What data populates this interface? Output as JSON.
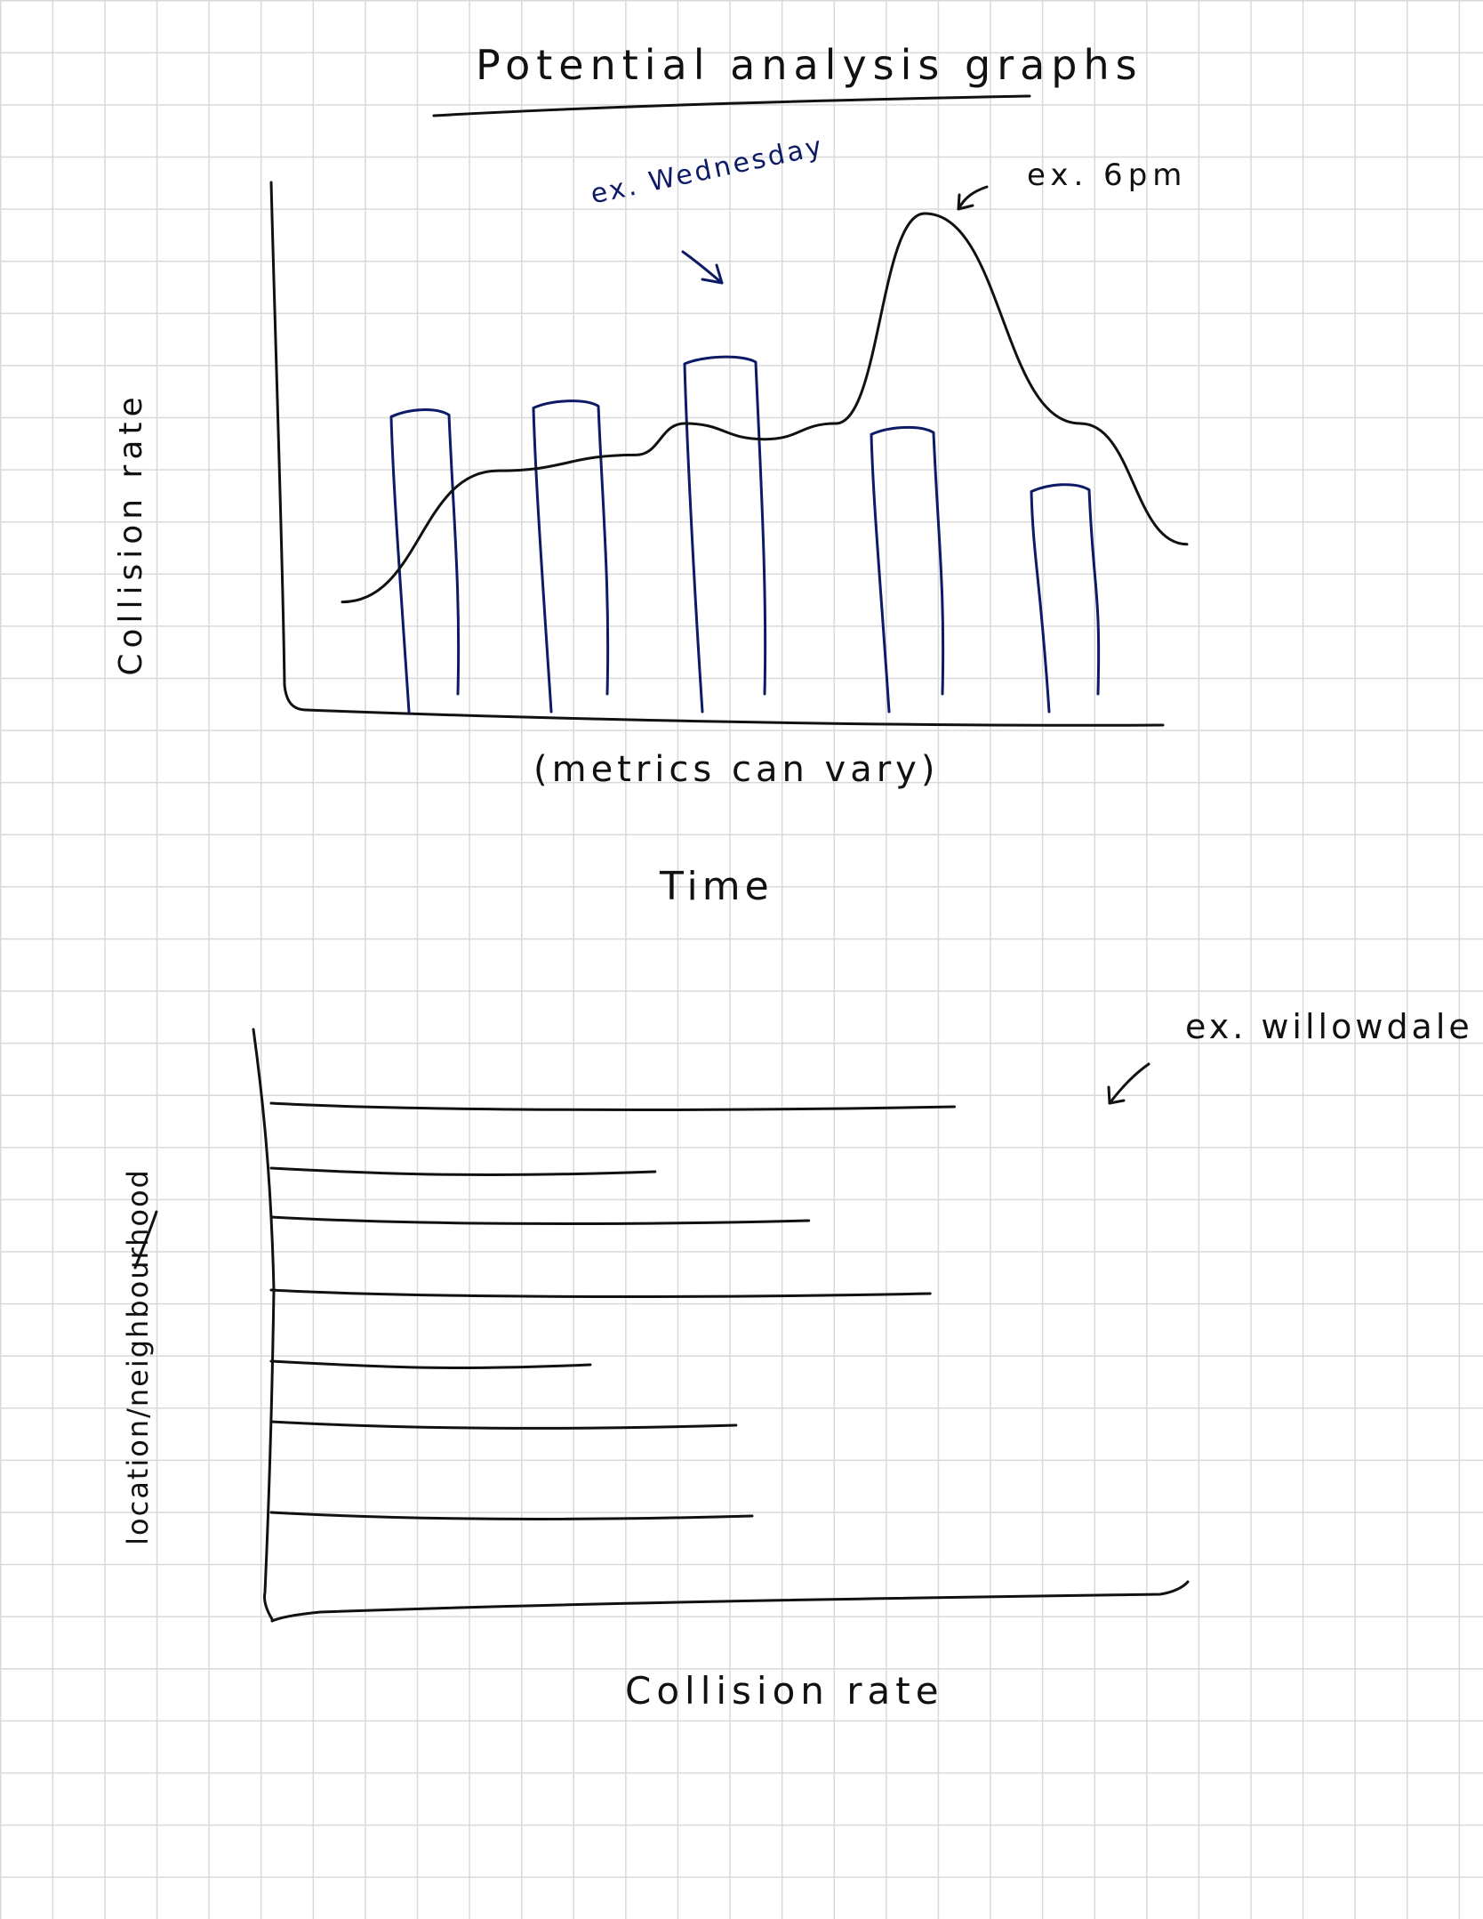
{
  "title": "Potential analysis graphs",
  "ink_colors": {
    "black": "#111111",
    "blue": "#0d1a66"
  },
  "chart_data": [
    {
      "type": "bar",
      "title": "",
      "xlabel": "Time",
      "ylabel": "Collision rate",
      "note": "(metrics can vary)",
      "series": [
        {
          "type": "bar",
          "values": [
            0.68,
            0.7,
            0.8,
            0.64,
            0.51
          ]
        },
        {
          "type": "line",
          "values": [
            0.26,
            0.51,
            0.54,
            0.6,
            0.57,
            0.6,
            1.0,
            0.6,
            0.37
          ]
        }
      ],
      "annotations": [
        {
          "text": "ex. Wednesday",
          "target": "bar-3"
        },
        {
          "text": "ex. 6pm",
          "target": "line-peak"
        }
      ],
      "ylim": [
        0,
        1
      ]
    },
    {
      "type": "bar",
      "orientation": "horizontal",
      "title": "",
      "xlabel": "Collision rate",
      "ylabel": "location/neighbourhood",
      "values": [
        0.85,
        0.48,
        0.67,
        0.82,
        0.4,
        0.58,
        0.6
      ],
      "annotations": [
        {
          "text": "ex. willowdale",
          "target": "bar-1"
        }
      ],
      "xlim": [
        0,
        1
      ]
    }
  ]
}
